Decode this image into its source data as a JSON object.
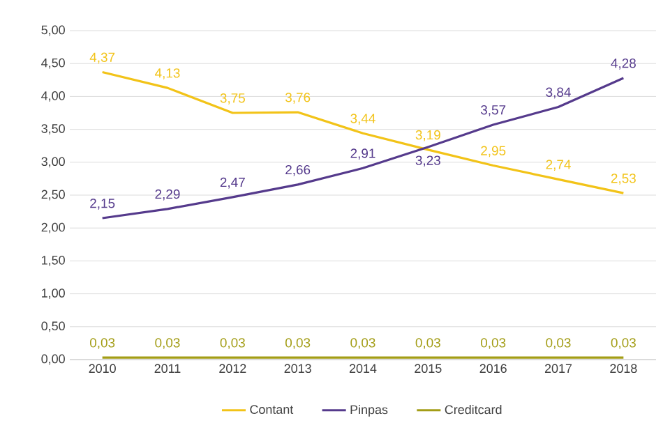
{
  "chart_data": {
    "type": "line",
    "categories": [
      "2010",
      "2011",
      "2012",
      "2013",
      "2014",
      "2015",
      "2016",
      "2017",
      "2018"
    ],
    "series": [
      {
        "name": "Contant",
        "color": "#f2c318",
        "values": [
          4.37,
          4.13,
          3.75,
          3.76,
          3.44,
          3.19,
          2.95,
          2.74,
          2.53
        ],
        "value_labels": [
          "4,37",
          "4,13",
          "3,75",
          "3,76",
          "3,44",
          "3,19",
          "2,95",
          "2,74",
          "2,53"
        ]
      },
      {
        "name": "Pinpas",
        "color": "#553a8c",
        "values": [
          2.15,
          2.29,
          2.47,
          2.66,
          2.91,
          3.23,
          3.57,
          3.84,
          4.28
        ],
        "value_labels": [
          "2,15",
          "2,29",
          "2,47",
          "2,66",
          "2,91",
          "3,23",
          "3,57",
          "3,84",
          "4,28"
        ]
      },
      {
        "name": "Creditcard",
        "color": "#a39d16",
        "values": [
          0.03,
          0.03,
          0.03,
          0.03,
          0.03,
          0.03,
          0.03,
          0.03,
          0.03
        ],
        "value_labels": [
          "0,03",
          "0,03",
          "0,03",
          "0,03",
          "0,03",
          "0,03",
          "0,03",
          "0,03",
          "0,03"
        ]
      }
    ],
    "ylim": [
      0,
      5
    ],
    "yticks": [
      {
        "value": 0,
        "label": "0,00"
      },
      {
        "value": 0.5,
        "label": "0,50"
      },
      {
        "value": 1,
        "label": "1,00"
      },
      {
        "value": 1.5,
        "label": "1,50"
      },
      {
        "value": 2,
        "label": "2,00"
      },
      {
        "value": 2.5,
        "label": "2,50"
      },
      {
        "value": 3,
        "label": "3,00"
      },
      {
        "value": 3.5,
        "label": "3,50"
      },
      {
        "value": 4,
        "label": "4,00"
      },
      {
        "value": 4.5,
        "label": "4,50"
      },
      {
        "value": 5,
        "label": "5,00"
      }
    ],
    "grid": "y",
    "legend": "bottom",
    "marker": "none",
    "line_style": "solid"
  }
}
